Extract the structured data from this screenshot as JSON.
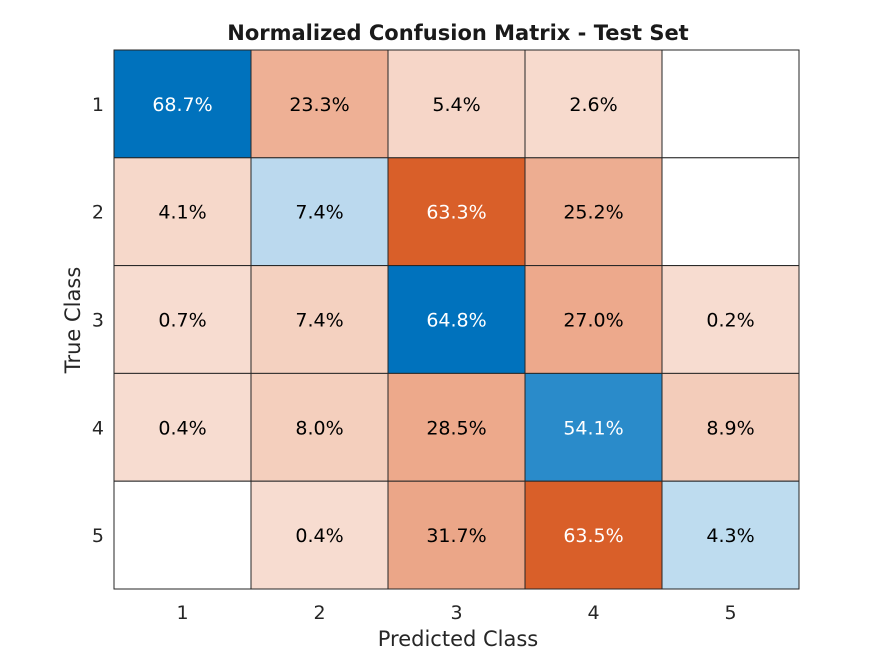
{
  "chart_data": {
    "type": "heatmap",
    "title": "Normalized Confusion Matrix - Test Set",
    "xlabel": "Predicted Class",
    "ylabel": "True Class",
    "x_categories": [
      "1",
      "2",
      "3",
      "4",
      "5"
    ],
    "y_categories": [
      "1",
      "2",
      "3",
      "4",
      "5"
    ],
    "cells": [
      [
        {
          "value": 68.7,
          "label": "68.7%",
          "color": "#0072bd",
          "text_color": "#ffffff"
        },
        {
          "value": 23.3,
          "label": "23.3%",
          "color": "#eeb095",
          "text_color": "#000000"
        },
        {
          "value": 5.4,
          "label": "5.4%",
          "color": "#f6d6c8",
          "text_color": "#000000"
        },
        {
          "value": 2.6,
          "label": "2.6%",
          "color": "#f7dacd",
          "text_color": "#000000"
        },
        {
          "value": null,
          "label": "",
          "color": "#ffffff",
          "text_color": "#000000"
        }
      ],
      [
        {
          "value": 4.1,
          "label": "4.1%",
          "color": "#f6d8ca",
          "text_color": "#000000"
        },
        {
          "value": 7.4,
          "label": "7.4%",
          "color": "#bbd9ee",
          "text_color": "#000000"
        },
        {
          "value": 63.3,
          "label": "63.3%",
          "color": "#d95f29",
          "text_color": "#ffffff"
        },
        {
          "value": 25.2,
          "label": "25.2%",
          "color": "#edad91",
          "text_color": "#000000"
        },
        {
          "value": null,
          "label": "",
          "color": "#ffffff",
          "text_color": "#000000"
        }
      ],
      [
        {
          "value": 0.7,
          "label": "0.7%",
          "color": "#f7dcd0",
          "text_color": "#000000"
        },
        {
          "value": 7.4,
          "label": "7.4%",
          "color": "#f4d1c0",
          "text_color": "#000000"
        },
        {
          "value": 64.8,
          "label": "64.8%",
          "color": "#0072bd",
          "text_color": "#ffffff"
        },
        {
          "value": 27.0,
          "label": "27.0%",
          "color": "#eda98c",
          "text_color": "#000000"
        },
        {
          "value": 0.2,
          "label": "0.2%",
          "color": "#f7dcd0",
          "text_color": "#000000"
        }
      ],
      [
        {
          "value": 0.4,
          "label": "0.4%",
          "color": "#f7dcd0",
          "text_color": "#000000"
        },
        {
          "value": 8.0,
          "label": "8.0%",
          "color": "#f4cfbd",
          "text_color": "#000000"
        },
        {
          "value": 28.5,
          "label": "28.5%",
          "color": "#eda98b",
          "text_color": "#000000"
        },
        {
          "value": 54.1,
          "label": "54.1%",
          "color": "#2a8bca",
          "text_color": "#ffffff"
        },
        {
          "value": 8.9,
          "label": "8.9%",
          "color": "#f3ccba",
          "text_color": "#000000"
        }
      ],
      [
        {
          "value": null,
          "label": "",
          "color": "#ffffff",
          "text_color": "#000000"
        },
        {
          "value": 0.4,
          "label": "0.4%",
          "color": "#f7dcd0",
          "text_color": "#000000"
        },
        {
          "value": 31.7,
          "label": "31.7%",
          "color": "#eba688",
          "text_color": "#000000"
        },
        {
          "value": 63.5,
          "label": "63.5%",
          "color": "#d95f29",
          "text_color": "#ffffff"
        },
        {
          "value": 4.3,
          "label": "4.3%",
          "color": "#bedcef",
          "text_color": "#000000"
        }
      ]
    ],
    "grid": true,
    "legend": "none"
  }
}
